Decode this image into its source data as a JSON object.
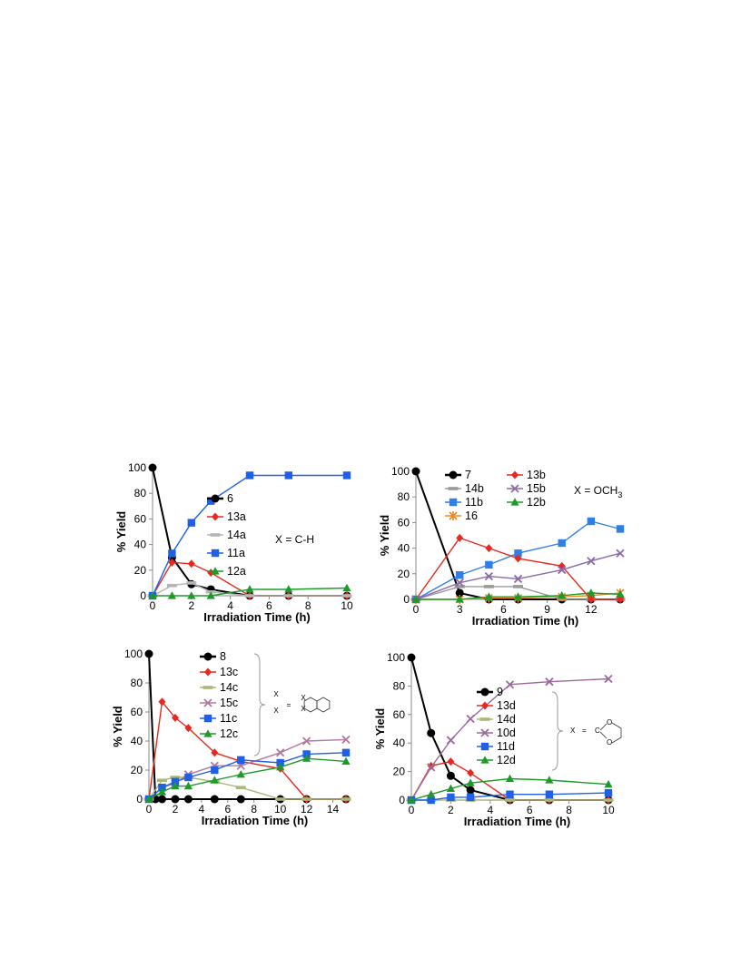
{
  "chart_data": [
    {
      "type": "line",
      "xlabel": "Irradiation Time (h)",
      "ylabel": "% Yield",
      "xlim": [
        0,
        10
      ],
      "ylim": [
        0,
        100
      ],
      "xticks": [
        0,
        2,
        4,
        6,
        8,
        10
      ],
      "yticks": [
        0,
        20,
        40,
        60,
        80,
        100
      ],
      "legend_position": "center",
      "annotation": "X = C-H",
      "series": [
        {
          "name": "6",
          "color": "#000000",
          "marker": "circle",
          "x": [
            0,
            1,
            2,
            3,
            5,
            7,
            10
          ],
          "y": [
            100,
            30,
            9,
            5,
            0,
            0,
            0
          ]
        },
        {
          "name": "13a",
          "color": "#e8281e",
          "marker": "diamond",
          "x": [
            0,
            1,
            2,
            3,
            5,
            7,
            10
          ],
          "y": [
            0,
            26,
            25,
            18,
            0,
            0,
            0
          ]
        },
        {
          "name": "14a",
          "color": "#b5b5b5",
          "marker": "dash",
          "x": [
            0,
            1,
            2,
            3,
            5,
            7,
            10
          ],
          "y": [
            0,
            8,
            10,
            3,
            0,
            0,
            0
          ]
        },
        {
          "name": "11a",
          "color": "#2060e8",
          "marker": "square",
          "x": [
            0,
            1,
            2,
            3,
            5,
            7,
            10
          ],
          "y": [
            0,
            33,
            57,
            74,
            94,
            94,
            94
          ]
        },
        {
          "name": "12a",
          "color": "#1f9a2a",
          "marker": "triangle",
          "x": [
            0,
            1,
            2,
            3,
            5,
            7,
            10
          ],
          "y": [
            0,
            0,
            0,
            0,
            5,
            5,
            6
          ]
        }
      ]
    },
    {
      "type": "line",
      "xlabel": "Irradiation Time (h)",
      "ylabel": "% Yield",
      "xlim": [
        0,
        14
      ],
      "ylim": [
        0,
        100
      ],
      "xticks": [
        0,
        3,
        6,
        9,
        12
      ],
      "yticks": [
        0,
        20,
        40,
        60,
        80,
        100
      ],
      "legend_position": "top",
      "annotation": "X = OCH",
      "annotation_subscript": "3",
      "series": [
        {
          "name": "7",
          "color": "#000000",
          "marker": "circle",
          "x": [
            0,
            3,
            5,
            7,
            10,
            12,
            14
          ],
          "y": [
            100,
            5,
            0,
            0,
            0,
            0,
            0
          ]
        },
        {
          "name": "14b",
          "color": "#9a9a9a",
          "marker": "dash",
          "x": [
            0,
            3,
            5,
            7,
            10,
            12,
            14
          ],
          "y": [
            0,
            10,
            10,
            10,
            0,
            0,
            0
          ]
        },
        {
          "name": "11b",
          "color": "#2f7fe8",
          "marker": "square",
          "x": [
            0,
            3,
            5,
            7,
            10,
            12,
            14
          ],
          "y": [
            0,
            19,
            27,
            36,
            44,
            61,
            55
          ]
        },
        {
          "name": "16",
          "color": "#f08a1e",
          "marker": "asterisk",
          "x": [
            0,
            3,
            5,
            7,
            10,
            12,
            14
          ],
          "y": [
            0,
            0,
            1,
            1,
            2,
            3,
            5
          ]
        },
        {
          "name": "13b",
          "color": "#e8281e",
          "marker": "diamond",
          "x": [
            0,
            3,
            5,
            7,
            10,
            12,
            14
          ],
          "y": [
            0,
            48,
            40,
            32,
            26,
            0,
            0
          ]
        },
        {
          "name": "15b",
          "color": "#8a6aa8",
          "marker": "x",
          "x": [
            0,
            3,
            5,
            7,
            10,
            12,
            14
          ],
          "y": [
            0,
            13,
            18,
            16,
            23,
            30,
            36
          ]
        },
        {
          "name": "12b",
          "color": "#1f9a2a",
          "marker": "triangle",
          "x": [
            0,
            3,
            5,
            7,
            10,
            12,
            14
          ],
          "y": [
            0,
            0,
            2,
            2,
            3,
            5,
            4
          ]
        }
      ]
    },
    {
      "type": "line",
      "xlabel": "Irradiation Time (h)",
      "ylabel": "% Yield",
      "xlim": [
        0,
        15
      ],
      "ylim": [
        0,
        100
      ],
      "xticks": [
        0,
        2,
        4,
        6,
        8,
        10,
        12,
        14
      ],
      "yticks": [
        0,
        20,
        40,
        60,
        80,
        100
      ],
      "legend_position": "top-right",
      "annotation_x": "X",
      "annotation_eq": "=",
      "series": [
        {
          "name": "8",
          "color": "#000000",
          "marker": "circle",
          "x": [
            0,
            0.5,
            1,
            2,
            3,
            5,
            7,
            10,
            12,
            15
          ],
          "y": [
            100,
            0,
            0,
            0,
            0,
            0,
            0,
            0,
            0,
            0
          ]
        },
        {
          "name": "13c",
          "color": "#e8281e",
          "marker": "diamond",
          "x": [
            0,
            1,
            2,
            3,
            5,
            7,
            10,
            12,
            15
          ],
          "y": [
            0,
            67,
            56,
            49,
            32,
            26,
            21,
            0,
            0
          ]
        },
        {
          "name": "14c",
          "color": "#a8b878",
          "marker": "dash",
          "x": [
            0,
            1,
            2,
            3,
            5,
            7,
            10,
            12,
            15
          ],
          "y": [
            0,
            13,
            15,
            15,
            12,
            8,
            0,
            0,
            0
          ]
        },
        {
          "name": "15c",
          "color": "#b07aa0",
          "marker": "x",
          "x": [
            0,
            1,
            2,
            3,
            5,
            7,
            10,
            12,
            15
          ],
          "y": [
            0,
            8,
            11,
            17,
            23,
            23,
            32,
            40,
            41
          ]
        },
        {
          "name": "11c",
          "color": "#2060e8",
          "marker": "square",
          "x": [
            0,
            1,
            2,
            3,
            5,
            7,
            10,
            12,
            15
          ],
          "y": [
            0,
            8,
            12,
            15,
            20,
            27,
            25,
            31,
            32
          ]
        },
        {
          "name": "12c",
          "color": "#1f9a2a",
          "marker": "triangle",
          "x": [
            0,
            1,
            2,
            3,
            5,
            7,
            10,
            12,
            15
          ],
          "y": [
            0,
            5,
            9,
            9,
            13,
            17,
            22,
            28,
            26
          ]
        }
      ]
    },
    {
      "type": "line",
      "xlabel": "Irradiation Time (h)",
      "ylabel": "% Yield",
      "xlim": [
        0,
        10
      ],
      "ylim": [
        0,
        100
      ],
      "xticks": [
        0,
        2,
        4,
        6,
        8,
        10
      ],
      "yticks": [
        0,
        20,
        40,
        60,
        80,
        100
      ],
      "legend_position": "center",
      "annotation_x": "X",
      "annotation_eq": "=",
      "annotation_atoms": [
        "C",
        "O",
        "O"
      ],
      "series": [
        {
          "name": "9",
          "color": "#000000",
          "marker": "circle",
          "x": [
            0,
            1,
            2,
            3,
            5,
            7,
            10
          ],
          "y": [
            100,
            47,
            17,
            7,
            0,
            0,
            0
          ]
        },
        {
          "name": "13d",
          "color": "#e8281e",
          "marker": "diamond",
          "x": [
            0,
            1,
            2,
            3,
            5,
            7,
            10
          ],
          "y": [
            0,
            24,
            27,
            19,
            0,
            0,
            0
          ]
        },
        {
          "name": "14d",
          "color": "#a8b878",
          "marker": "dash",
          "x": [
            0,
            1,
            2,
            3,
            5,
            7,
            10
          ],
          "y": [
            0,
            0,
            0,
            0,
            0,
            0,
            0
          ]
        },
        {
          "name": "10d",
          "color": "#9a6a9a",
          "marker": "x",
          "x": [
            0,
            1,
            2,
            3,
            5,
            7,
            10
          ],
          "y": [
            0,
            23,
            42,
            57,
            81,
            83,
            85
          ]
        },
        {
          "name": "11d",
          "color": "#2060e8",
          "marker": "square",
          "x": [
            0,
            1,
            2,
            3,
            5,
            7,
            10
          ],
          "y": [
            0,
            0,
            2,
            2,
            4,
            4,
            5
          ]
        },
        {
          "name": "12d",
          "color": "#1f9a2a",
          "marker": "triangle",
          "x": [
            0,
            1,
            2,
            3,
            5,
            7,
            10
          ],
          "y": [
            0,
            4,
            8,
            12,
            15,
            14,
            11
          ]
        }
      ]
    }
  ]
}
